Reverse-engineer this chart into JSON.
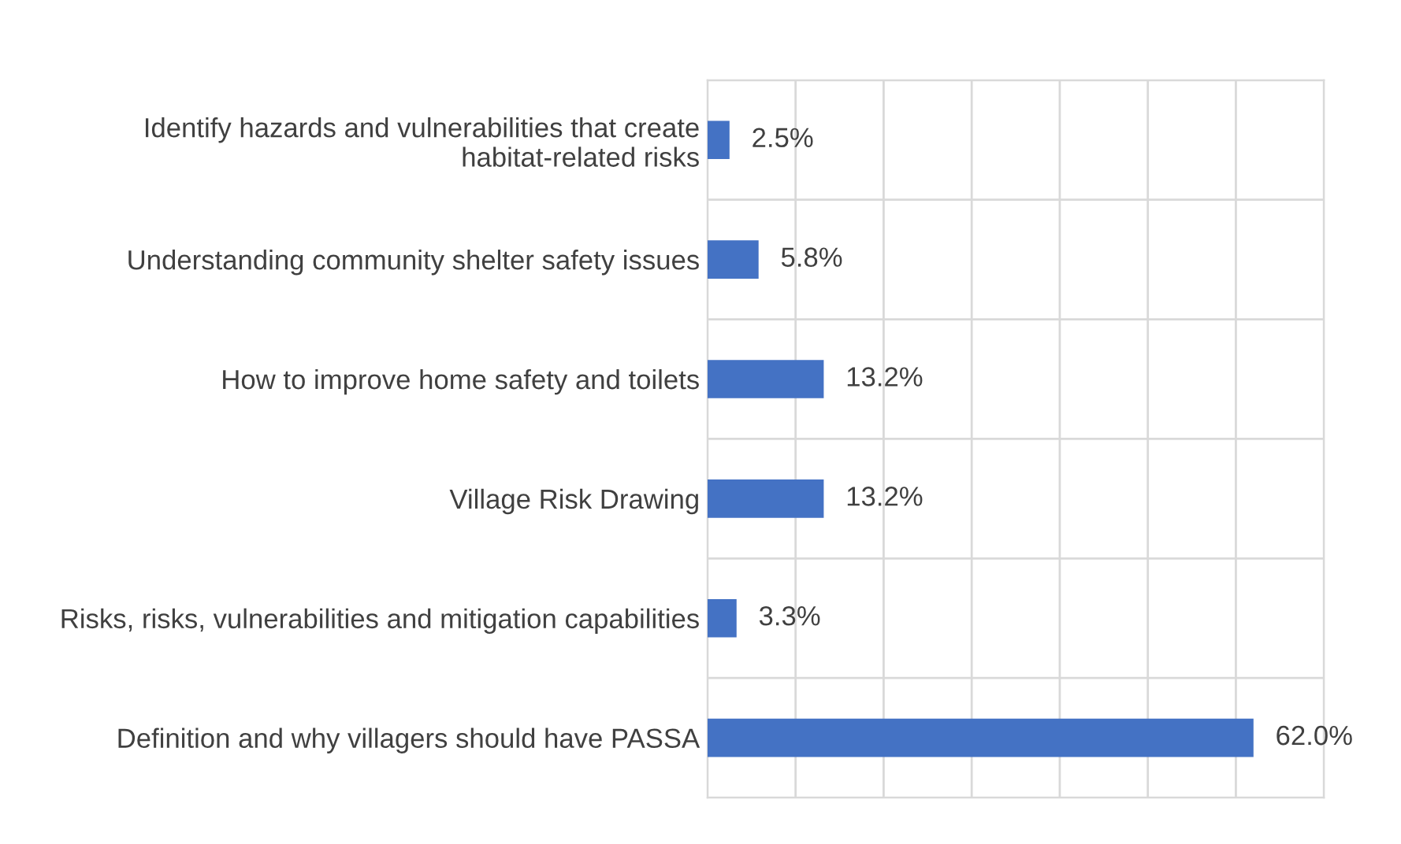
{
  "chart_data": {
    "type": "bar",
    "orientation": "horizontal",
    "categories": [
      "Identify hazards and vulnerabilities that create habitat-related risks",
      "Understanding community shelter safety issues",
      "How to improve home safety and toilets",
      "Village Risk Drawing",
      "Risks, risks, vulnerabilities and mitigation capabilities",
      "Definition and why villagers should have PASSA"
    ],
    "values": [
      2.5,
      5.8,
      13.2,
      13.2,
      3.3,
      62.0
    ],
    "value_labels": [
      "2.5%",
      "5.8%",
      "13.2%",
      "13.2%",
      "3.3%",
      "62.0%"
    ],
    "color": "#4472c4",
    "xlim": [
      0,
      70
    ],
    "xticks": [
      {
        "value": 0,
        "label": null
      },
      {
        "value": 10,
        "label": null
      },
      {
        "value": 20,
        "label": null
      },
      {
        "value": 30,
        "label": null
      },
      {
        "value": 40,
        "label": null
      },
      {
        "value": 50,
        "label": null
      },
      {
        "value": 60,
        "label": null
      },
      {
        "value": 70,
        "label": null
      }
    ],
    "grid": true,
    "legend": false
  }
}
